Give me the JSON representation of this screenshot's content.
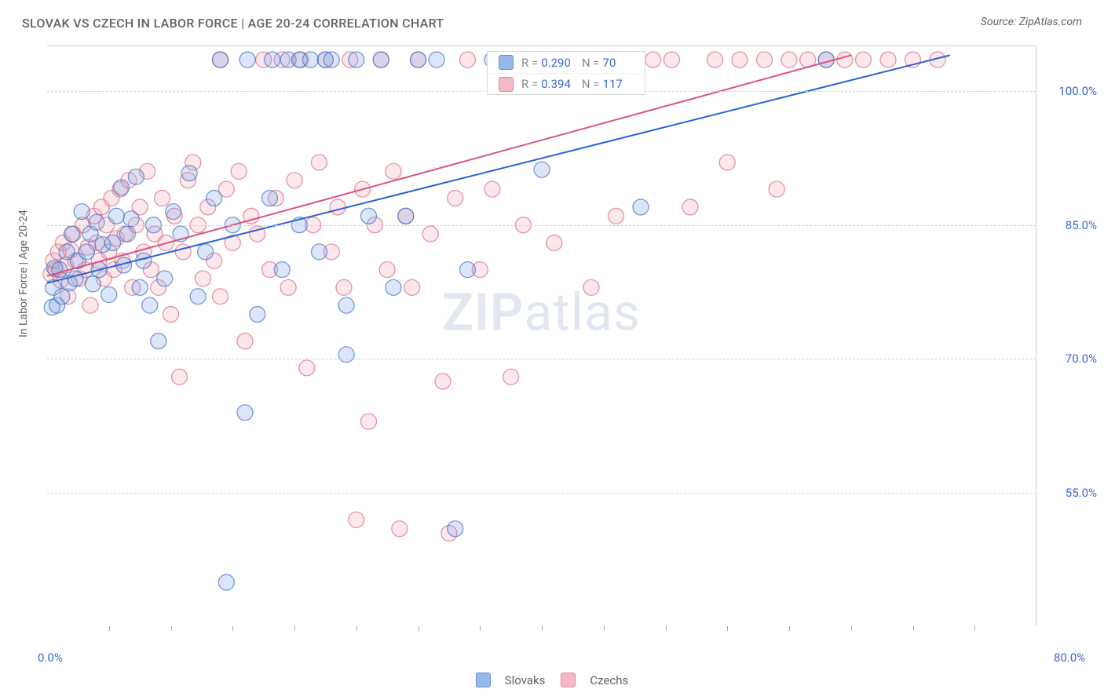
{
  "header": {
    "title": "SLOVAK VS CZECH IN LABOR FORCE | AGE 20-24 CORRELATION CHART",
    "source_label": "Source: ",
    "source_name": "ZipAtlas.com"
  },
  "chart": {
    "type": "scatter",
    "ylabel": "In Labor Force | Age 20-24",
    "xlim": [
      0,
      80
    ],
    "ylim": [
      40,
      105
    ],
    "y_ticks": [
      55.0,
      70.0,
      85.0,
      100.0
    ],
    "y_tick_labels": [
      "55.0%",
      "70.0%",
      "85.0%",
      "100.0%"
    ],
    "x_major_ticks": [
      0,
      80
    ],
    "x_tick_labels": [
      "0.0%",
      "80.0%"
    ],
    "x_minor_tick_step": 5,
    "background_color": "#ffffff",
    "grid_color": "#d0d0d0",
    "marker_radius": 10,
    "marker_fill_opacity": 0.28,
    "marker_stroke_width": 1.3,
    "line_width": 2.0,
    "series": {
      "slovaks": {
        "label": "Slovaks",
        "fill": "#7ea7e6",
        "stroke": "#3f72c9",
        "line_color": "#2a61d6",
        "R": "0.290",
        "N": "70",
        "regression_line": {
          "x1": 0,
          "y1": 78.5,
          "x2": 73,
          "y2": 104.0
        },
        "points": [
          [
            0.4,
            75.8
          ],
          [
            0.5,
            78.0
          ],
          [
            0.6,
            80.2
          ],
          [
            0.8,
            76.0
          ],
          [
            1.0,
            80.0
          ],
          [
            1.2,
            77.0
          ],
          [
            1.6,
            82.0
          ],
          [
            1.8,
            78.5
          ],
          [
            2.0,
            84.0
          ],
          [
            2.3,
            79.0
          ],
          [
            2.5,
            81.0
          ],
          [
            2.8,
            86.5
          ],
          [
            3.2,
            82.0
          ],
          [
            3.5,
            84.0
          ],
          [
            3.7,
            78.4
          ],
          [
            4.0,
            85.3
          ],
          [
            4.2,
            80.0
          ],
          [
            4.5,
            82.8
          ],
          [
            5.0,
            77.2
          ],
          [
            5.3,
            83.0
          ],
          [
            5.6,
            86.0
          ],
          [
            6.0,
            89.2
          ],
          [
            6.2,
            80.5
          ],
          [
            6.5,
            84.0
          ],
          [
            6.8,
            85.7
          ],
          [
            7.2,
            90.4
          ],
          [
            7.5,
            78.0
          ],
          [
            7.8,
            81.0
          ],
          [
            8.3,
            76.0
          ],
          [
            8.6,
            85.0
          ],
          [
            9.0,
            72.0
          ],
          [
            9.5,
            79.0
          ],
          [
            10.2,
            86.5
          ],
          [
            10.8,
            84.0
          ],
          [
            11.5,
            90.8
          ],
          [
            12.2,
            77.0
          ],
          [
            12.8,
            82.0
          ],
          [
            13.5,
            88.0
          ],
          [
            14.0,
            103.5
          ],
          [
            15.0,
            85.0
          ],
          [
            16.0,
            64.0
          ],
          [
            16.2,
            103.5
          ],
          [
            17.0,
            75.0
          ],
          [
            18.0,
            88.0
          ],
          [
            18.2,
            103.5
          ],
          [
            19.0,
            80.0
          ],
          [
            19.5,
            103.5
          ],
          [
            20.4,
            103.5
          ],
          [
            20.4,
            85.0
          ],
          [
            21.3,
            103.5
          ],
          [
            22.0,
            82.0
          ],
          [
            22.5,
            103.5
          ],
          [
            23.0,
            103.5
          ],
          [
            24.2,
            70.5
          ],
          [
            25.0,
            103.5
          ],
          [
            14.5,
            45.0
          ],
          [
            24.2,
            76.0
          ],
          [
            26.0,
            86.0
          ],
          [
            27.0,
            103.5
          ],
          [
            28.0,
            78.0
          ],
          [
            29.0,
            86.0
          ],
          [
            30.0,
            103.5
          ],
          [
            31.5,
            103.5
          ],
          [
            33.0,
            51.0
          ],
          [
            34.0,
            80.0
          ],
          [
            36.0,
            103.5
          ],
          [
            38.0,
            103.5
          ],
          [
            40.0,
            91.2
          ],
          [
            48.0,
            87.0
          ],
          [
            63.0,
            103.5
          ]
        ]
      },
      "czechs": {
        "label": "Czechs",
        "fill": "#f3a8b7",
        "stroke": "#d76a85",
        "line_color": "#d9537a",
        "R": "0.394",
        "N": "117",
        "regression_line": {
          "x1": 0,
          "y1": 79.3,
          "x2": 65,
          "y2": 104.0
        },
        "points": [
          [
            0.3,
            79.5
          ],
          [
            0.5,
            81.0
          ],
          [
            0.7,
            80.0
          ],
          [
            0.9,
            82.0
          ],
          [
            1.1,
            78.8
          ],
          [
            1.3,
            83.0
          ],
          [
            1.5,
            80.5
          ],
          [
            1.7,
            77.0
          ],
          [
            1.9,
            82.2
          ],
          [
            2.1,
            84.0
          ],
          [
            2.3,
            81.0
          ],
          [
            2.6,
            79.0
          ],
          [
            2.9,
            85.0
          ],
          [
            3.1,
            80.0
          ],
          [
            3.3,
            82.5
          ],
          [
            3.5,
            76.0
          ],
          [
            3.8,
            86.0
          ],
          [
            4.0,
            83.0
          ],
          [
            4.2,
            81.0
          ],
          [
            4.4,
            87.0
          ],
          [
            4.6,
            79.0
          ],
          [
            4.8,
            85.0
          ],
          [
            5.0,
            82.0
          ],
          [
            5.2,
            88.0
          ],
          [
            5.4,
            80.0
          ],
          [
            5.6,
            83.5
          ],
          [
            5.9,
            89.0
          ],
          [
            6.1,
            81.0
          ],
          [
            6.3,
            84.0
          ],
          [
            6.6,
            90.0
          ],
          [
            6.9,
            78.0
          ],
          [
            7.2,
            85.0
          ],
          [
            7.5,
            87.0
          ],
          [
            7.8,
            82.0
          ],
          [
            8.1,
            91.0
          ],
          [
            8.4,
            80.0
          ],
          [
            8.7,
            84.0
          ],
          [
            9.0,
            78.0
          ],
          [
            9.3,
            88.0
          ],
          [
            9.6,
            83.0
          ],
          [
            10.0,
            75.0
          ],
          [
            10.3,
            86.0
          ],
          [
            10.7,
            68.0
          ],
          [
            11.0,
            82.0
          ],
          [
            11.4,
            90.0
          ],
          [
            11.8,
            92.0
          ],
          [
            12.2,
            85.0
          ],
          [
            12.6,
            79.0
          ],
          [
            13.0,
            87.0
          ],
          [
            13.5,
            81.0
          ],
          [
            14.0,
            103.5
          ],
          [
            14.0,
            77.0
          ],
          [
            14.5,
            89.0
          ],
          [
            15.0,
            83.0
          ],
          [
            15.5,
            91.0
          ],
          [
            16.0,
            72.0
          ],
          [
            16.5,
            86.0
          ],
          [
            17.0,
            84.0
          ],
          [
            17.5,
            103.5
          ],
          [
            18.0,
            80.0
          ],
          [
            18.5,
            88.0
          ],
          [
            19.0,
            103.5
          ],
          [
            19.5,
            78.0
          ],
          [
            20.0,
            90.0
          ],
          [
            20.5,
            103.5
          ],
          [
            21.0,
            69.0
          ],
          [
            21.5,
            85.0
          ],
          [
            22.0,
            92.0
          ],
          [
            22.5,
            103.5
          ],
          [
            23.0,
            82.0
          ],
          [
            23.5,
            87.0
          ],
          [
            24.0,
            78.0
          ],
          [
            24.5,
            103.5
          ],
          [
            25.0,
            52.0
          ],
          [
            25.5,
            89.0
          ],
          [
            26.0,
            63.0
          ],
          [
            26.5,
            85.0
          ],
          [
            27.0,
            103.5
          ],
          [
            27.5,
            80.0
          ],
          [
            28.0,
            91.0
          ],
          [
            28.5,
            51.0
          ],
          [
            29.0,
            86.0
          ],
          [
            29.5,
            78.0
          ],
          [
            30.0,
            103.5
          ],
          [
            31.0,
            84.0
          ],
          [
            32.0,
            67.5
          ],
          [
            32.5,
            50.5
          ],
          [
            33.0,
            88.0
          ],
          [
            34.0,
            103.5
          ],
          [
            35.0,
            80.0
          ],
          [
            36.0,
            89.0
          ],
          [
            37.0,
            103.5
          ],
          [
            37.5,
            68.0
          ],
          [
            38.5,
            85.0
          ],
          [
            40.0,
            103.5
          ],
          [
            41.0,
            83.0
          ],
          [
            42.5,
            103.5
          ],
          [
            44.0,
            78.0
          ],
          [
            45.0,
            103.5
          ],
          [
            46.0,
            86.0
          ],
          [
            47.5,
            103.5
          ],
          [
            49.0,
            103.5
          ],
          [
            50.5,
            103.5
          ],
          [
            52.0,
            87.0
          ],
          [
            54.0,
            103.5
          ],
          [
            55.0,
            92.0
          ],
          [
            56.0,
            103.5
          ],
          [
            58.0,
            103.5
          ],
          [
            59.0,
            89.0
          ],
          [
            60.0,
            103.5
          ],
          [
            61.5,
            103.5
          ],
          [
            63.0,
            103.5
          ],
          [
            64.5,
            103.5
          ],
          [
            66.0,
            103.5
          ],
          [
            68.0,
            103.5
          ],
          [
            70.0,
            103.5
          ],
          [
            72.0,
            103.5
          ]
        ]
      }
    },
    "watermark": {
      "part1": "ZIP",
      "part2": "atlas"
    }
  },
  "legend_top_labels": {
    "R": "R =",
    "N": "N ="
  }
}
